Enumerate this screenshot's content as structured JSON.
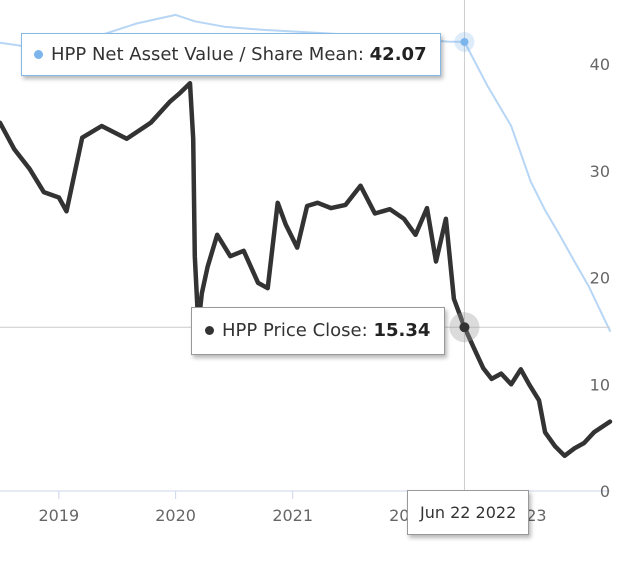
{
  "chart_data": {
    "type": "line",
    "x_ticks": [
      "2019",
      "2020",
      "2021",
      "2022",
      "2023"
    ],
    "y_ticks": [
      0,
      10,
      20,
      30,
      40
    ],
    "ylim": [
      0,
      46
    ],
    "xlim": [
      "2018-07-01",
      "2023-09-20"
    ],
    "grid": "off",
    "series": [
      {
        "name": "HPP Net Asset Value / Share Mean",
        "color": "#7cb5ec",
        "x": [
          "2018-07-01",
          "2018-10-01",
          "2019-01-15",
          "2019-05-01",
          "2019-09-01",
          "2020-01-01",
          "2020-03-01",
          "2020-06-01",
          "2020-10-01",
          "2021-02-01",
          "2021-06-01",
          "2021-10-01",
          "2022-01-01",
          "2022-03-15",
          "2022-05-01",
          "2022-06-22",
          "2022-09-01",
          "2022-11-15",
          "2023-01-15",
          "2023-03-01",
          "2023-04-15",
          "2023-06-01",
          "2023-07-15",
          "2023-09-20"
        ],
        "values": [
          42.0,
          41.6,
          41.2,
          42.6,
          43.8,
          44.6,
          44.0,
          43.5,
          43.2,
          43.0,
          42.8,
          42.5,
          42.3,
          42.2,
          42.1,
          42.07,
          38.0,
          34.2,
          29.0,
          26.3,
          24.0,
          21.5,
          19.2,
          15.0
        ]
      },
      {
        "name": "HPP Price Close",
        "color": "#333333",
        "x": [
          "2018-07-01",
          "2018-08-15",
          "2018-10-01",
          "2018-11-15",
          "2019-01-01",
          "2019-01-25",
          "2019-03-15",
          "2019-05-15",
          "2019-08-01",
          "2019-10-15",
          "2019-12-15",
          "2020-01-15",
          "2020-02-15",
          "2020-02-25",
          "2020-03-01",
          "2020-03-12",
          "2020-03-23",
          "2020-04-10",
          "2020-05-10",
          "2020-06-20",
          "2020-08-01",
          "2020-09-15",
          "2020-10-15",
          "2020-11-15",
          "2020-12-10",
          "2021-01-15",
          "2021-02-15",
          "2021-03-20",
          "2021-05-01",
          "2021-06-15",
          "2021-08-01",
          "2021-09-15",
          "2021-11-01",
          "2021-12-15",
          "2022-01-20",
          "2022-02-25",
          "2022-03-25",
          "2022-04-25",
          "2022-05-20",
          "2022-06-22",
          "2022-07-20",
          "2022-08-20",
          "2022-09-15",
          "2022-10-15",
          "2022-11-15",
          "2022-12-15",
          "2023-01-10",
          "2023-02-10",
          "2023-03-01",
          "2023-04-01",
          "2023-05-01",
          "2023-06-01",
          "2023-07-01",
          "2023-08-01",
          "2023-09-20"
        ],
        "values": [
          34.5,
          32.0,
          30.2,
          28.0,
          27.5,
          26.2,
          33.1,
          34.2,
          33.0,
          34.5,
          36.5,
          37.3,
          38.2,
          33.0,
          22.0,
          15.5,
          18.5,
          21.0,
          24.0,
          22.0,
          22.5,
          19.5,
          19.0,
          27.0,
          25.0,
          22.8,
          26.7,
          27.0,
          26.5,
          26.8,
          28.6,
          26.0,
          26.4,
          25.5,
          24.0,
          26.5,
          21.5,
          25.5,
          18.0,
          15.34,
          13.5,
          11.5,
          10.5,
          11.0,
          10.0,
          11.4,
          10.0,
          8.5,
          5.5,
          4.2,
          3.3,
          4.0,
          4.5,
          5.5,
          6.5
        ]
      }
    ],
    "crosshair_date": "2022-06-22"
  },
  "tooltips": {
    "nav_label": "HPP Net Asset Value / Share Mean:",
    "nav_value": "42.07",
    "price_label": "HPP Price Close:",
    "price_value": "15.34",
    "date_label": "Jun 22 2022"
  }
}
